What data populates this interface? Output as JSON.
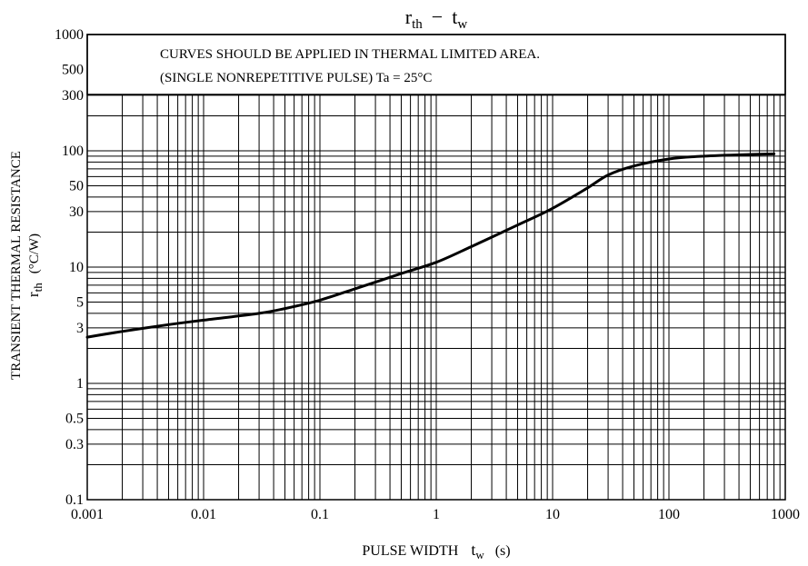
{
  "chart_data": {
    "type": "line",
    "title": {
      "main": "r",
      "main_sub": "th",
      "dash": "−",
      "second": "t",
      "second_sub": "w"
    },
    "xlabel": {
      "text": "PULSE WIDTH",
      "sym": "t",
      "sym_sub": "w",
      "unit": "(s)"
    },
    "ylabel": {
      "text": "TRANSIENT THERMAL RESISTANCE",
      "sym": "r",
      "sym_sub": "th",
      "unit": "(°C/W)"
    },
    "x_scale": "log",
    "y_scale": "log",
    "xlim": [
      0.001,
      1000
    ],
    "ylim": [
      0.1,
      1000
    ],
    "x_ticks": [
      {
        "value": 0.001,
        "label": "0.001"
      },
      {
        "value": 0.01,
        "label": "0.01"
      },
      {
        "value": 0.1,
        "label": "0.1"
      },
      {
        "value": 1,
        "label": "1"
      },
      {
        "value": 10,
        "label": "10"
      },
      {
        "value": 100,
        "label": "100"
      },
      {
        "value": 1000,
        "label": "1000"
      }
    ],
    "y_ticks": [
      {
        "value": 0.1,
        "label": "0.1"
      },
      {
        "value": 0.3,
        "label": "0.3"
      },
      {
        "value": 0.5,
        "label": "0.5"
      },
      {
        "value": 1,
        "label": "1"
      },
      {
        "value": 3,
        "label": "3"
      },
      {
        "value": 5,
        "label": "5"
      },
      {
        "value": 10,
        "label": "10"
      },
      {
        "value": 30,
        "label": "30"
      },
      {
        "value": 50,
        "label": "50"
      },
      {
        "value": 100,
        "label": "100"
      },
      {
        "value": 300,
        "label": "300"
      },
      {
        "value": 500,
        "label": "500"
      },
      {
        "value": 1000,
        "label": "1000"
      }
    ],
    "annotations": [
      "CURVES SHOULD BE APPLIED IN THERMAL LIMITED AREA.",
      "(SINGLE NONREPETITIVE PULSE)   Ta = 25°C"
    ],
    "grid": true,
    "series": [
      {
        "x": [
          0.001,
          0.002,
          0.005,
          0.01,
          0.03,
          0.05,
          0.1,
          0.2,
          0.5,
          1,
          2,
          5,
          10,
          20,
          30,
          50,
          100,
          200,
          500,
          800
        ],
        "y": [
          2.5,
          2.8,
          3.2,
          3.5,
          4.0,
          4.4,
          5.2,
          6.5,
          8.8,
          11,
          15,
          23,
          32,
          48,
          62,
          74,
          85,
          90,
          93,
          94
        ]
      }
    ]
  }
}
